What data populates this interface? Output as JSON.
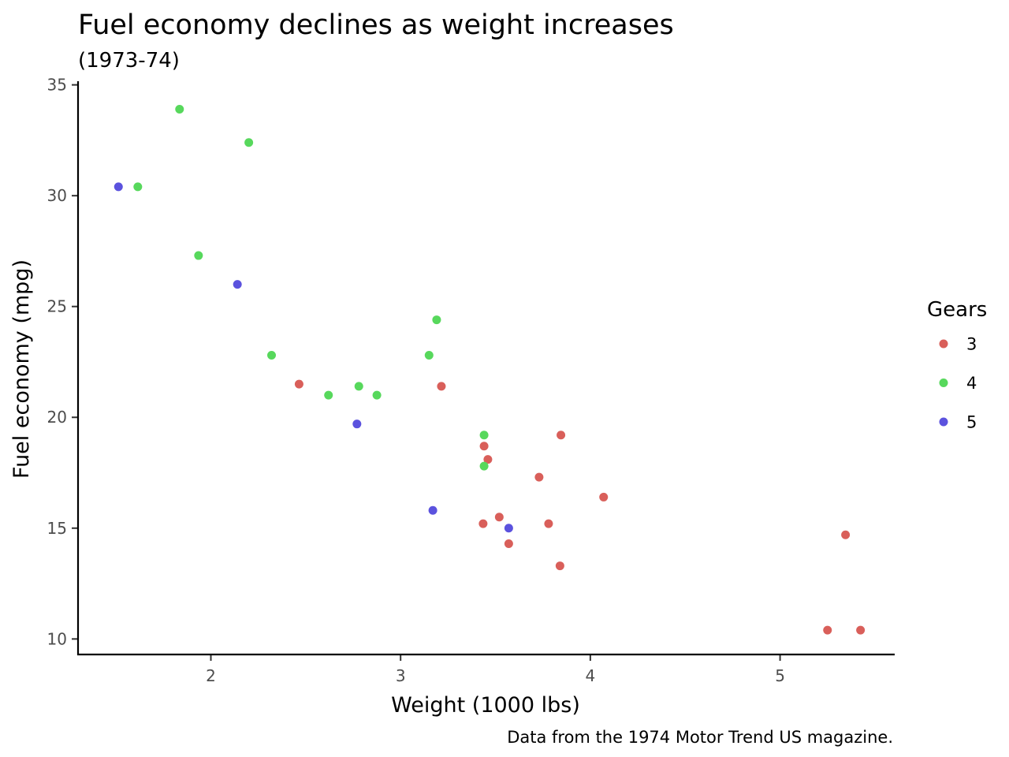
{
  "chart_data": {
    "type": "scatter",
    "title": "Fuel economy declines as weight increases",
    "subtitle": "(1973-74)",
    "xlabel": "Weight (1000 lbs)",
    "ylabel": "Fuel economy (mpg)",
    "caption": "Data from the 1974 Motor Trend US magazine.",
    "xlim": [
      1.3,
      5.6
    ],
    "ylim": [
      9.3,
      35.2
    ],
    "x_ticks": [
      2,
      3,
      4,
      5
    ],
    "y_ticks": [
      10,
      15,
      20,
      25,
      30,
      35
    ],
    "grid": false,
    "legend": {
      "title": "Gears",
      "position": "right",
      "entries": [
        "3",
        "4",
        "5"
      ]
    },
    "series": [
      {
        "name": "3",
        "color": "#d95f5a",
        "points": [
          {
            "x": 2.465,
            "y": 21.5
          },
          {
            "x": 3.215,
            "y": 21.4
          },
          {
            "x": 3.44,
            "y": 18.7
          },
          {
            "x": 3.46,
            "y": 18.1
          },
          {
            "x": 3.57,
            "y": 14.3
          },
          {
            "x": 4.07,
            "y": 16.4
          },
          {
            "x": 3.73,
            "y": 17.3
          },
          {
            "x": 3.78,
            "y": 15.2
          },
          {
            "x": 5.25,
            "y": 10.4
          },
          {
            "x": 5.424,
            "y": 10.4
          },
          {
            "x": 5.345,
            "y": 14.7
          },
          {
            "x": 3.52,
            "y": 15.5
          },
          {
            "x": 3.435,
            "y": 15.2
          },
          {
            "x": 3.84,
            "y": 13.3
          },
          {
            "x": 3.845,
            "y": 19.2
          }
        ]
      },
      {
        "name": "4",
        "color": "#57d85c",
        "points": [
          {
            "x": 2.62,
            "y": 21.0
          },
          {
            "x": 2.875,
            "y": 21.0
          },
          {
            "x": 2.32,
            "y": 22.8
          },
          {
            "x": 3.19,
            "y": 24.4
          },
          {
            "x": 3.15,
            "y": 22.8
          },
          {
            "x": 3.44,
            "y": 19.2
          },
          {
            "x": 3.44,
            "y": 17.8
          },
          {
            "x": 2.2,
            "y": 32.4
          },
          {
            "x": 1.615,
            "y": 30.4
          },
          {
            "x": 1.835,
            "y": 33.9
          },
          {
            "x": 1.935,
            "y": 27.3
          },
          {
            "x": 2.78,
            "y": 21.4
          }
        ]
      },
      {
        "name": "5",
        "color": "#5b52de",
        "points": [
          {
            "x": 2.14,
            "y": 26.0
          },
          {
            "x": 1.513,
            "y": 30.4
          },
          {
            "x": 3.17,
            "y": 15.8
          },
          {
            "x": 2.77,
            "y": 19.7
          },
          {
            "x": 3.57,
            "y": 15.0
          }
        ]
      }
    ]
  }
}
